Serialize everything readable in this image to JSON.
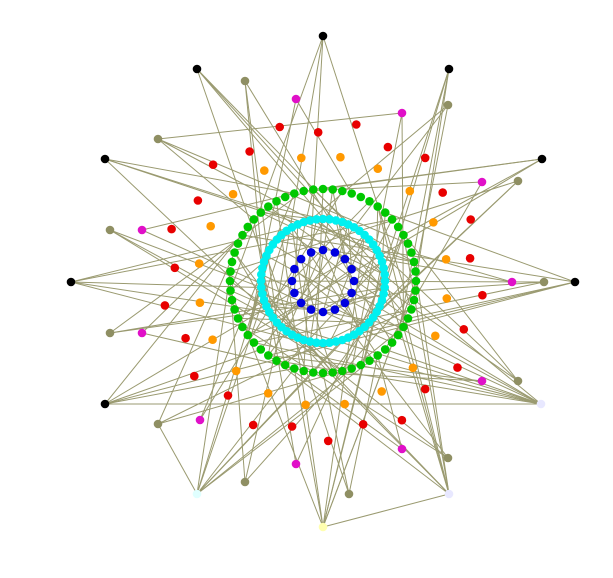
{
  "diagram": {
    "type": "radial network graph",
    "background": "#ffffff",
    "edge_color": "#9a9a70",
    "colors": {
      "black": "#000000",
      "olive": "#8f8f63",
      "magenta": "#e010c8",
      "red": "#e80000",
      "orange": "#ff9900",
      "green": "#00c800",
      "cyan": "#00f0f0",
      "blue": "#0000e0",
      "pale_lavender": "#e8e8ff",
      "pale_cyan": "#e0ffff",
      "pale_yellow": "#ffffb0"
    },
    "rings": [
      {
        "name": "outer-black",
        "color": "black",
        "count": 9
      },
      {
        "name": "outer-olive",
        "color": "olive",
        "count": 14
      },
      {
        "name": "magenta",
        "color": "magenta",
        "count": 10
      },
      {
        "name": "red",
        "color": "red",
        "count": 26
      },
      {
        "name": "orange",
        "color": "orange",
        "count": 20
      },
      {
        "name": "green",
        "color": "green",
        "count": 60
      },
      {
        "name": "cyan",
        "color": "cyan",
        "count": 60
      },
      {
        "name": "blue",
        "color": "blue",
        "count": 16
      }
    ],
    "special_nodes": [
      {
        "name": "pale-lavender-right",
        "color": "pale_lavender"
      },
      {
        "name": "pale-lavender-bottom",
        "color": "pale_lavender"
      },
      {
        "name": "pale-cyan-bottom-left",
        "color": "pale_cyan"
      },
      {
        "name": "pale-yellow-bottom",
        "color": "pale_yellow"
      }
    ]
  }
}
